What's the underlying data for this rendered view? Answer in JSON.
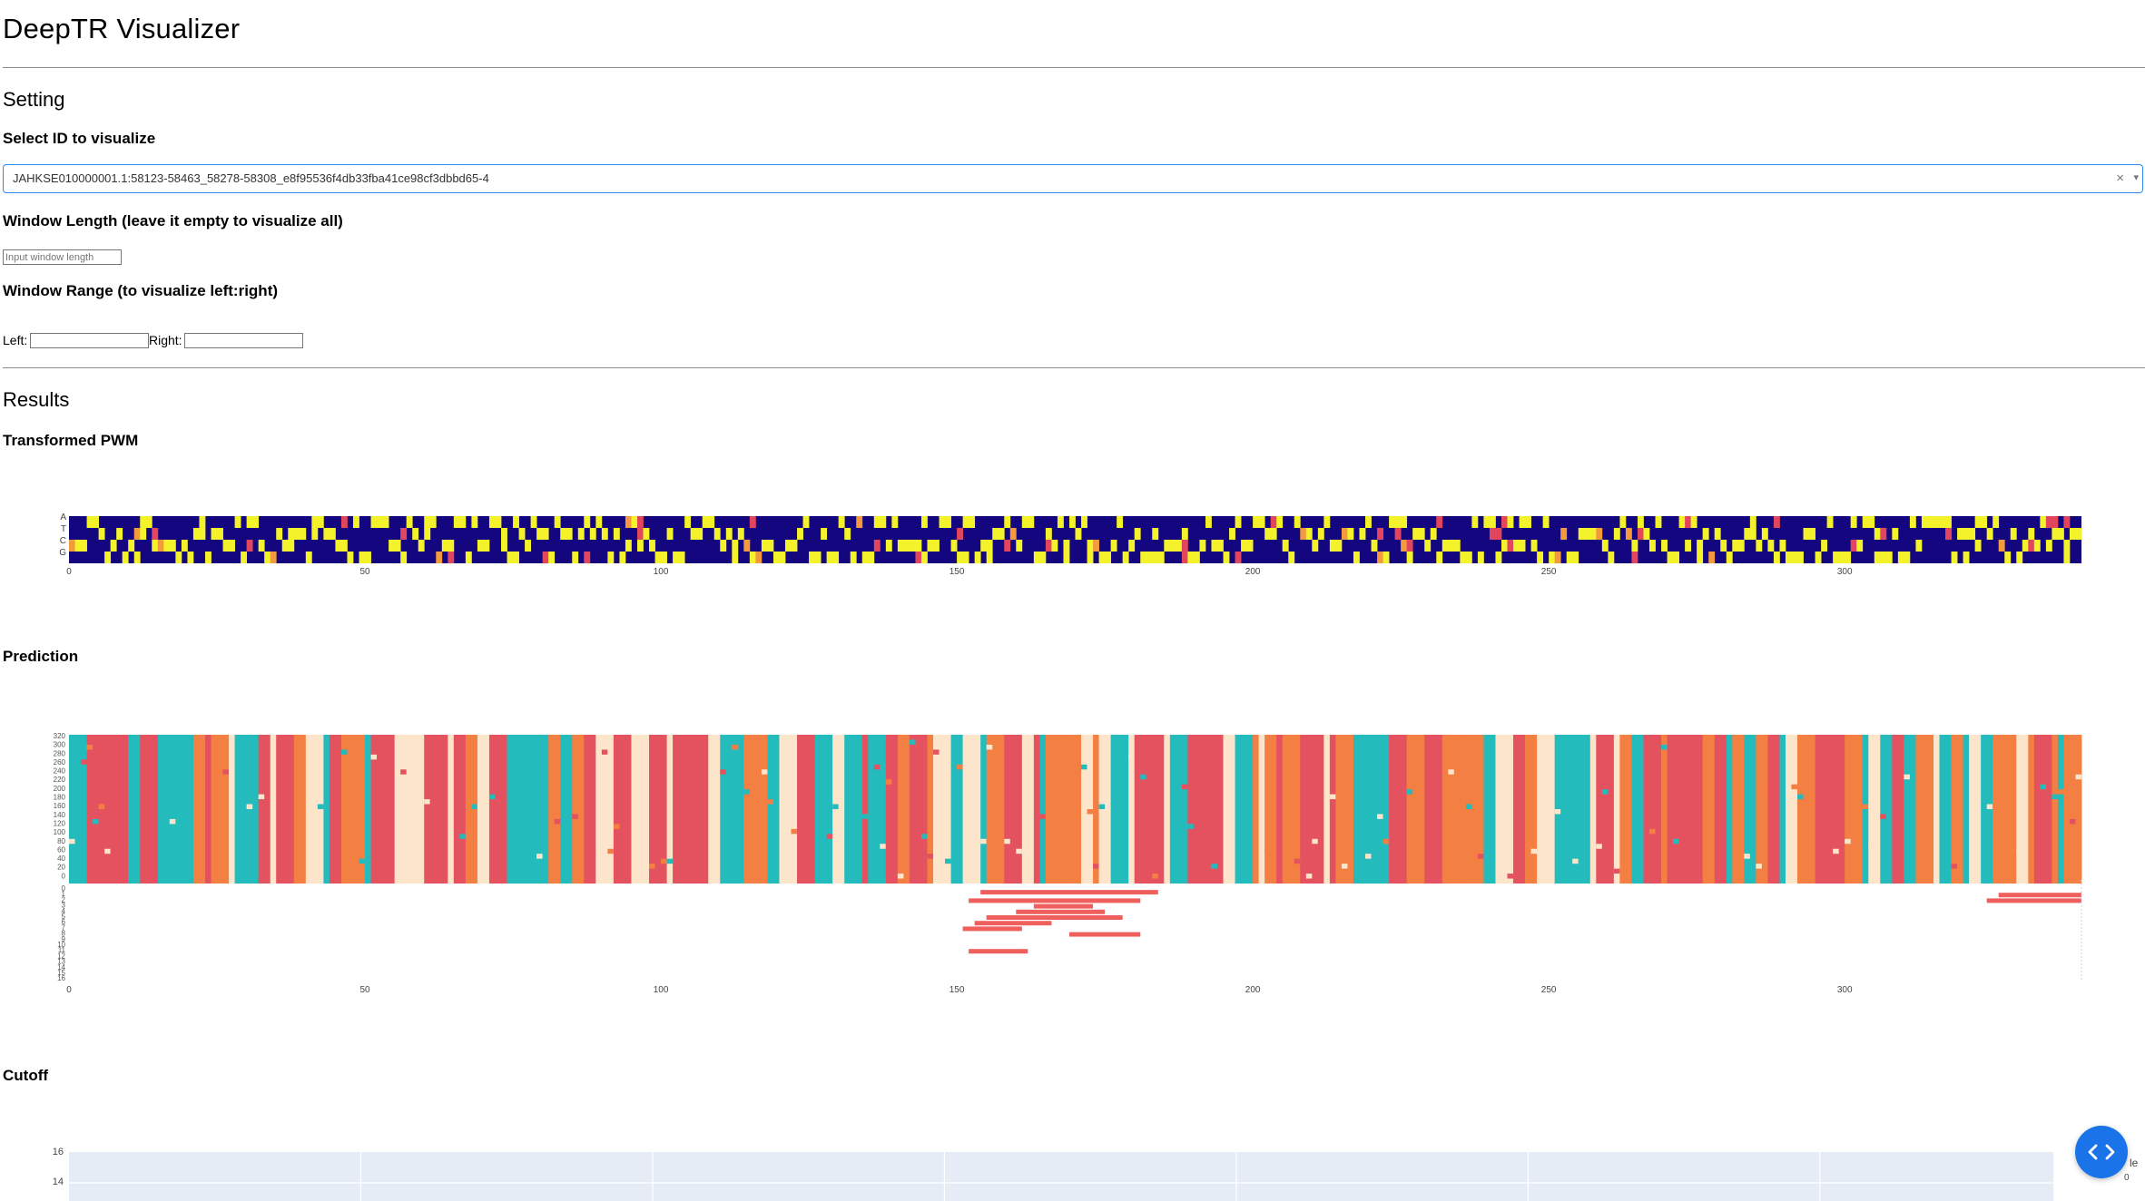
{
  "app": {
    "title": "DeepTR Visualizer"
  },
  "setting": {
    "heading": "Setting",
    "select_label": "Select ID to visualize",
    "selected_id": "JAHKSE010000001.1:58123-58463_58278-58308_e8f95536f4db33fba41ce98cf3dbbd65-4",
    "clear_glyph": "×",
    "caret_glyph": "▾",
    "window_length_label": "Window Length (leave it empty to visualize all)",
    "window_length_placeholder": "Input window length",
    "window_range_label": "Window Range (to visualize left:right)",
    "left_label": "Left:",
    "right_label": "Right:"
  },
  "results": {
    "heading": "Results",
    "pwm_title": "Transformed PWM",
    "prediction_title": "Prediction",
    "cutoff_title": "Cutoff"
  },
  "pwm_chart": {
    "type": "heatmap",
    "rows": [
      "A",
      "T",
      "C",
      "G"
    ],
    "x_ticks": [
      0,
      50,
      100,
      150,
      200,
      250,
      300
    ],
    "x_range": [
      0,
      340
    ],
    "colors": {
      "low": "#13067f",
      "high": "#f3f22b",
      "mid": "#f39a3e",
      "mid2": "#e2465f"
    }
  },
  "prediction_chart": {
    "type": "heatmap",
    "y_ticks_top": [
      "320",
      "300",
      "280",
      "260",
      "240",
      "220",
      "200",
      "180",
      "160",
      "140",
      "120",
      "100",
      "80",
      "60",
      "40",
      "20",
      "0"
    ],
    "y_ticks_bottom": [
      "0",
      "1",
      "2",
      "3",
      "4",
      "5",
      "6",
      "7",
      "8",
      "9",
      "10",
      "11",
      "12",
      "13",
      "14",
      "15",
      "16"
    ],
    "x_ticks": [
      0,
      50,
      100,
      150,
      200,
      250,
      300
    ],
    "x_range": [
      0,
      340
    ],
    "colors": {
      "pink": "#e4525f",
      "orange": "#f47f43",
      "teal": "#24bbbd",
      "beige": "#fde5cb",
      "bar": "#ef5f5e"
    },
    "bars": [
      {
        "row": 0.5,
        "x0": 154,
        "x1": 184
      },
      {
        "row": 2,
        "x0": 152,
        "x1": 181
      },
      {
        "row": 3,
        "x0": 163,
        "x1": 173
      },
      {
        "row": 4,
        "x0": 160,
        "x1": 175
      },
      {
        "row": 5,
        "x0": 155,
        "x1": 178
      },
      {
        "row": 6,
        "x0": 153,
        "x1": 166
      },
      {
        "row": 7,
        "x0": 151,
        "x1": 161
      },
      {
        "row": 8,
        "x0": 169,
        "x1": 181
      },
      {
        "row": 11,
        "x0": 152,
        "x1": 162
      },
      {
        "row": 1,
        "x0": 326,
        "x1": 340
      },
      {
        "row": 2,
        "x0": 324,
        "x1": 340
      }
    ]
  },
  "cutoff_chart": {
    "type": "line",
    "y_ticks": [
      16,
      14
    ],
    "legend_fragment": "le",
    "legend_value": "0"
  }
}
